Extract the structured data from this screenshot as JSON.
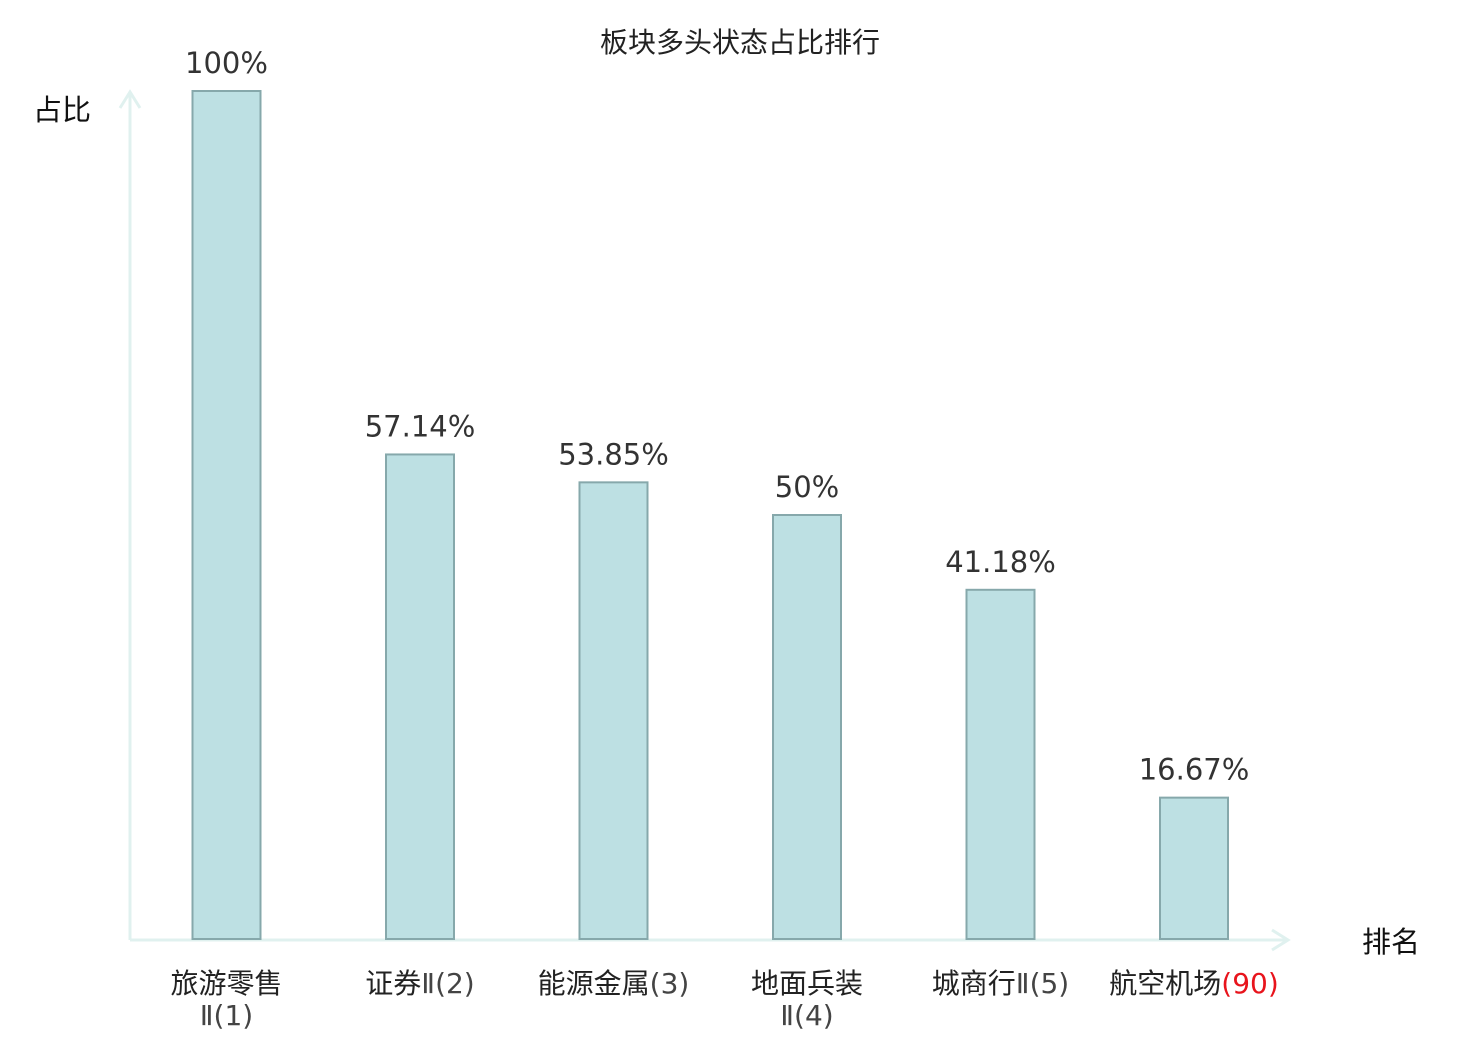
{
  "chart_data": {
    "type": "bar",
    "title": "板块多头状态占比排行",
    "ylabel": "占比",
    "xlabel": "排名",
    "ylim": [
      0,
      100
    ],
    "unit": "%",
    "grid": false,
    "categories": [
      {
        "name": "旅游零售",
        "suffix": "Ⅱ(1)",
        "wrap": true,
        "highlight": false
      },
      {
        "name": "证券",
        "suffix": "Ⅱ(2)",
        "wrap": false,
        "highlight": false
      },
      {
        "name": "能源金属",
        "suffix": "(3)",
        "wrap": false,
        "highlight": false
      },
      {
        "name": "地面兵装",
        "suffix": "Ⅱ(4)",
        "wrap": true,
        "highlight": false
      },
      {
        "name": "城商行",
        "suffix": "Ⅱ(5)",
        "wrap": false,
        "highlight": false
      },
      {
        "name": "航空机场",
        "suffix": "(90)",
        "wrap": false,
        "highlight": true
      }
    ],
    "values": [
      100,
      57.14,
      53.85,
      50,
      41.18,
      16.67
    ],
    "value_labels": [
      "100%",
      "57.14%",
      "53.85%",
      "50%",
      "41.18%",
      "16.67%"
    ],
    "colors": {
      "bar_fill": "#bde0e3",
      "bar_stroke": "#86a8ab",
      "axis": "#e0f1ef",
      "highlight": "#e8141c"
    }
  }
}
